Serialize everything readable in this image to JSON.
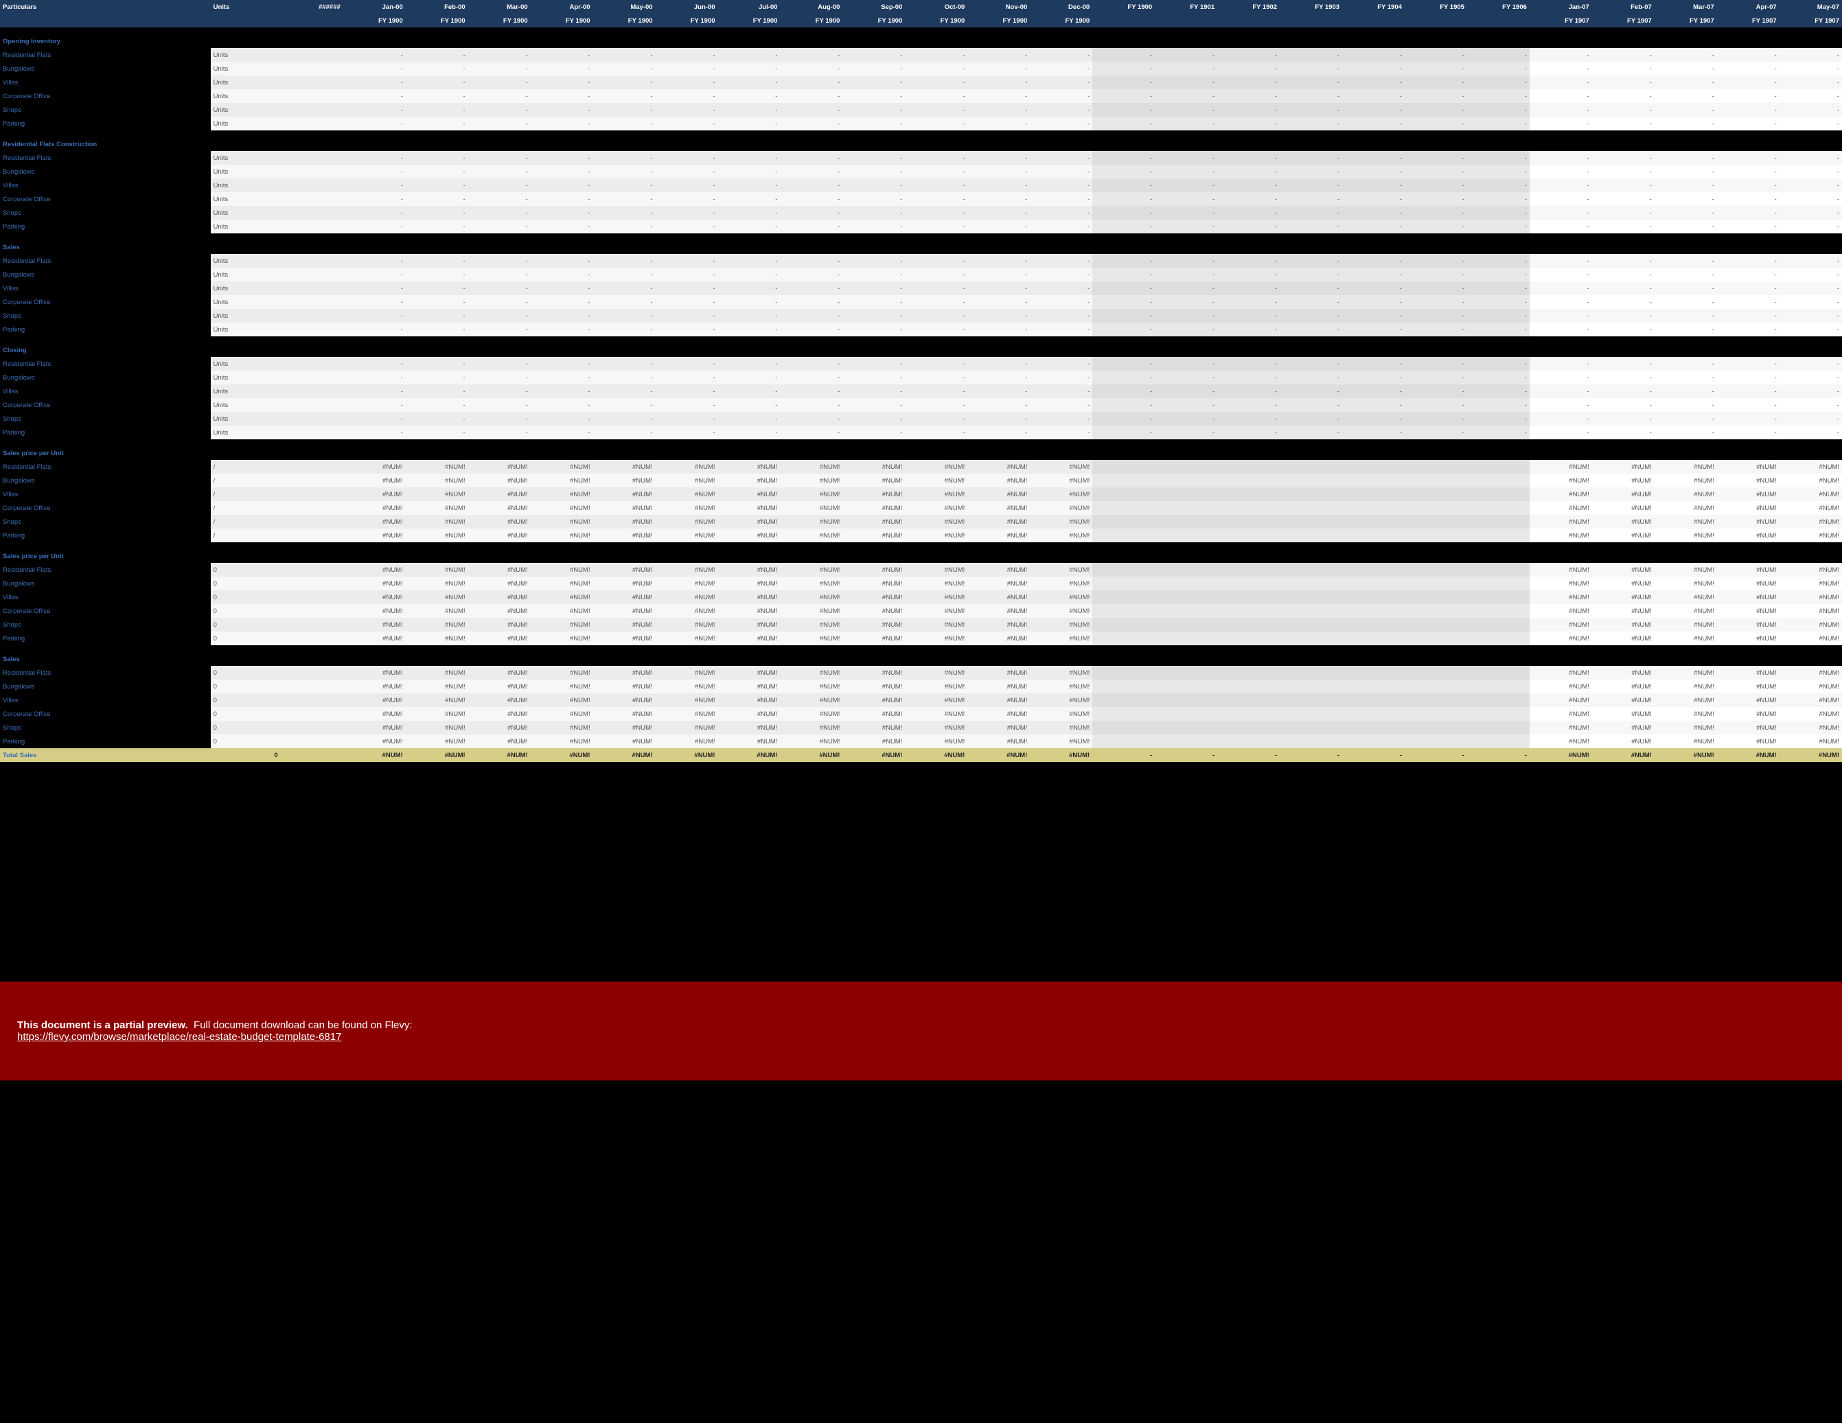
{
  "header": {
    "particulars": "Particulars",
    "units": "Units",
    "hash": "######"
  },
  "preview": {
    "bold": "This document is a partial preview.",
    "rest": "Full document download can be found on Flevy:",
    "url": "https://flevy.com/browse/marketplace/real-estate-budget-template-6817"
  },
  "months": [
    "Jan-00",
    "Feb-00",
    "Mar-00",
    "Apr-00",
    "May-00",
    "Jun-00",
    "Jul-00",
    "Aug-00",
    "Sep-00",
    "Oct-00",
    "Nov-00",
    "Dec-00"
  ],
  "monthsFY": [
    "FY 1900",
    "FY 1900",
    "FY 1900",
    "FY 1900",
    "FY 1900",
    "FY 1900",
    "FY 1900",
    "FY 1900",
    "FY 1900",
    "FY 1900",
    "FY 1900",
    "FY 1900"
  ],
  "fys": [
    "FY 1900",
    "FY 1901",
    "FY 1902"
  ],
  "fys2": [
    "FY 1903",
    "FY 1904",
    "FY 1905",
    "FY 1906"
  ],
  "months2": [
    "Jan-07",
    "Feb-07",
    "Mar-07",
    "Apr-07",
    "May-07"
  ],
  "months2FY": [
    "FY 1907",
    "FY 1907",
    "FY 1907",
    "FY 1907",
    "FY 1907"
  ],
  "placeholders": {
    "dash": "-",
    "num": "#NUM!",
    "zero": "0",
    "slash": "/"
  },
  "sections": [
    {
      "title": "Opening Inventory",
      "unitsCol": "Units",
      "rowsVal": "dash",
      "fyVal": "dash",
      "nVal": "dash",
      "rows": [
        "Residential Flats",
        "Bungalows",
        "Villas",
        "Corporate Office",
        "Shops",
        "Parking"
      ]
    },
    {
      "title": "Residential Flats Construction",
      "unitsCol": "Units",
      "rowsVal": "dash",
      "fyVal": "dash",
      "nVal": "dash",
      "rows": [
        "Residential Flats",
        "Bungalows",
        "Villas",
        "Corporate Office",
        "Shops",
        "Parking"
      ]
    },
    {
      "title": "Sales",
      "unitsCol": "Units",
      "rowsVal": "dash",
      "fyVal": "dash",
      "nVal": "dash",
      "rows": [
        "Residential Flats",
        "Bungalows",
        "Villas",
        "Corporate Office",
        "Shops",
        "Parking"
      ]
    },
    {
      "title": "Closing",
      "unitsCol": "Units",
      "rowsVal": "dash",
      "fyVal": "dash",
      "nVal": "dash",
      "rows": [
        "Residential Flats",
        "Bungalows",
        "Villas",
        "Corporate Office",
        "Shops",
        "Parking"
      ]
    },
    {
      "title": "Sales price per Unit",
      "unitsCol": "/",
      "rowsVal": "num",
      "fyVal": "",
      "nVal": "num",
      "rows": [
        "Residential Flats",
        "Bungalows",
        "Villas",
        "Corporate Office",
        "Shops",
        "Parking"
      ]
    },
    {
      "title": "Sales price per Unit",
      "unitsCol": "0",
      "rowsVal": "num",
      "fyVal": "",
      "nVal": "num",
      "rows": [
        "Residential Flats",
        "Bungalows",
        "Villas",
        "Corporate Office",
        "Shops",
        "Parking"
      ]
    },
    {
      "title": "Sales",
      "unitsCol": "0",
      "rowsVal": "num",
      "fyVal": "",
      "nVal": "num",
      "rows": [
        "Residential Flats",
        "Bungalows",
        "Villas",
        "Corporate Office",
        "Shops",
        "Parking"
      ]
    }
  ],
  "total": {
    "label": "Total Sales",
    "unitsCol": "0",
    "mVal": "#NUM!",
    "fyVal": "-",
    "nVal": "#NUM!"
  },
  "colors": {
    "headerBg": "#1f3a5f",
    "sectionFg": "#3a6fb7",
    "rowLight": "#f7f7f7",
    "rowDark": "#ececec",
    "fyLight": "#e8e8e8",
    "fyDark": "#dedede",
    "totalBg": "#d6ce87",
    "previewBg": "#8c0000"
  },
  "layout": {
    "previewTop": 1430,
    "tableCols": 26
  }
}
